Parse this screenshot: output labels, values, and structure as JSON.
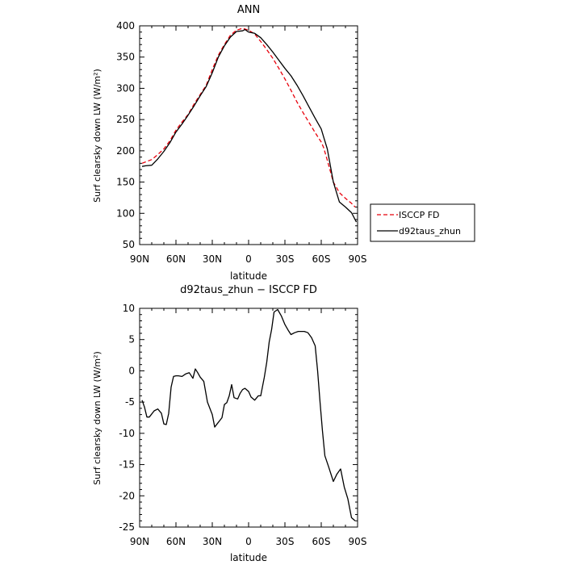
{
  "chart_data": [
    {
      "type": "line",
      "title": "ANN",
      "xlabel": "latitude",
      "ylabel": "Surf clearsky down LW (W/m²)",
      "xlim": [
        90,
        -90
      ],
      "ylim": [
        50,
        400
      ],
      "xticks": [
        90,
        60,
        30,
        0,
        -30,
        -60,
        -90
      ],
      "xticklabels": [
        "90N",
        "60N",
        "30N",
        "0",
        "30S",
        "60S",
        "90S"
      ],
      "yticks": [
        50,
        100,
        150,
        200,
        250,
        300,
        350,
        400
      ],
      "yticklabels": [
        "50",
        "100",
        "150",
        "200",
        "250",
        "300",
        "350",
        "400"
      ],
      "legend": {
        "position": "right"
      },
      "series": [
        {
          "name": "ISCCP FD",
          "color": "#e8000b",
          "style": "dashed",
          "x": [
            88,
            80,
            75,
            70,
            65,
            60,
            55,
            50,
            45,
            40,
            35,
            30,
            25,
            20,
            15,
            10,
            5,
            0,
            -5,
            -10,
            -15,
            -20,
            -25,
            -30,
            -35,
            -40,
            -45,
            -50,
            -55,
            -60,
            -62,
            -65,
            -70,
            -75,
            -80,
            -85,
            -88
          ],
          "y": [
            180,
            186,
            194,
            203,
            216,
            233,
            246,
            258,
            275,
            290,
            305,
            330,
            353,
            370,
            385,
            393,
            396,
            393,
            387,
            375,
            362,
            348,
            332,
            315,
            297,
            278,
            261,
            245,
            229,
            214,
            205,
            185,
            150,
            133,
            124,
            116,
            110
          ]
        },
        {
          "name": "d92taus_zhun",
          "color": "#000000",
          "style": "solid",
          "x": [
            88,
            85,
            80,
            75,
            70,
            65,
            60,
            55,
            50,
            45,
            40,
            35,
            30,
            25,
            20,
            15,
            10,
            5,
            3,
            0,
            -5,
            -10,
            -15,
            -20,
            -25,
            -30,
            -35,
            -40,
            -45,
            -50,
            -55,
            -60,
            -62,
            -65,
            -70,
            -75,
            -80,
            -85,
            -89
          ],
          "y": [
            175,
            176,
            177,
            187,
            199,
            213,
            230,
            243,
            257,
            272,
            288,
            303,
            325,
            350,
            368,
            382,
            391,
            392,
            394,
            390,
            388,
            381,
            370,
            358,
            345,
            332,
            320,
            305,
            288,
            270,
            252,
            235,
            222,
            203,
            150,
            118,
            110,
            101,
            86
          ]
        }
      ]
    },
    {
      "type": "line",
      "title": "d92taus_zhun − ISCCP FD",
      "xlabel": "latitude",
      "ylabel": "Surf clearsky down LW (W/m²)",
      "xlim": [
        90,
        -90
      ],
      "ylim": [
        -25,
        10
      ],
      "xticks": [
        90,
        60,
        30,
        0,
        -30,
        -60,
        -90
      ],
      "xticklabels": [
        "90N",
        "60N",
        "30N",
        "0",
        "30S",
        "60S",
        "90S"
      ],
      "yticks": [
        -25,
        -20,
        -15,
        -10,
        -5,
        0,
        5,
        10
      ],
      "yticklabels": [
        "-25",
        "-20",
        "-15",
        "-10",
        "-5",
        "0",
        "5",
        "10"
      ],
      "series": [
        {
          "color": "#000000",
          "style": "solid",
          "x": [
            88,
            86,
            84,
            82,
            78,
            75,
            72,
            70,
            68,
            66,
            64,
            62,
            60,
            58,
            55,
            52,
            49,
            46,
            44,
            42,
            40,
            37,
            34,
            32,
            30,
            28,
            26,
            24,
            22,
            20,
            18,
            16,
            14,
            12,
            9,
            7,
            5,
            3,
            0,
            -2,
            -5,
            -8,
            -10,
            -13,
            -15,
            -17,
            -19,
            -21,
            -24,
            -27,
            -30,
            -33,
            -35,
            -38,
            -41,
            -43,
            -46,
            -49,
            -52,
            -55,
            -57,
            -59,
            -61,
            -63,
            -66,
            -70,
            -73,
            -76,
            -79,
            -82,
            -85,
            -88
          ],
          "y": [
            -4.7,
            -5.8,
            -7.4,
            -7.4,
            -6.4,
            -6.1,
            -6.8,
            -8.5,
            -8.6,
            -6.8,
            -2.6,
            -0.9,
            -0.8,
            -0.8,
            -0.9,
            -0.5,
            -0.3,
            -1.2,
            0.3,
            -0.3,
            -1.0,
            -1.7,
            -5.0,
            -6.0,
            -7.0,
            -9.0,
            -8.5,
            -8.0,
            -7.5,
            -5.4,
            -5.1,
            -4.0,
            -2.2,
            -4.3,
            -4.5,
            -3.6,
            -3.0,
            -2.8,
            -3.3,
            -4.2,
            -4.7,
            -4.0,
            -4.0,
            -1.0,
            1.4,
            4.6,
            6.6,
            9.4,
            9.8,
            8.8,
            7.4,
            6.4,
            5.8,
            6.1,
            6.3,
            6.3,
            6.3,
            6.1,
            5.3,
            4.0,
            0.0,
            -5.0,
            -9.6,
            -13.6,
            -15.3,
            -17.7,
            -16.5,
            -15.7,
            -18.6,
            -20.5,
            -23.5,
            -24.0
          ]
        }
      ]
    }
  ]
}
